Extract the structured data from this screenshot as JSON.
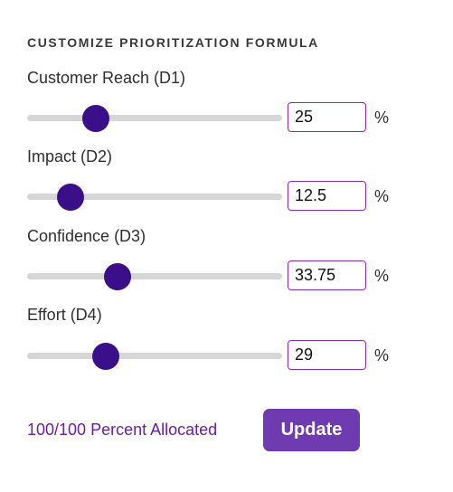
{
  "section_title": "CUSTOMIZE PRIORITIZATION FORMULA",
  "dimensions": [
    {
      "label": "Customer Reach (D1)",
      "value": "25",
      "slider_fraction": 0.27
    },
    {
      "label": "Impact (D2)",
      "value": "12.5",
      "slider_fraction": 0.17
    },
    {
      "label": "Confidence (D3)",
      "value": "33.75",
      "slider_fraction": 0.355
    },
    {
      "label": "Effort (D4)",
      "value": "29",
      "slider_fraction": 0.31
    }
  ],
  "unit_symbol": "%",
  "allocation_status": "100/100 Percent Allocated",
  "update_label": "Update",
  "colors": {
    "accent": "#6f3bb0",
    "thumb": "#3c0f8a",
    "status_text": "#6a1ea8",
    "input_border": "#8a2bb5",
    "track": "#d6d6d6"
  }
}
